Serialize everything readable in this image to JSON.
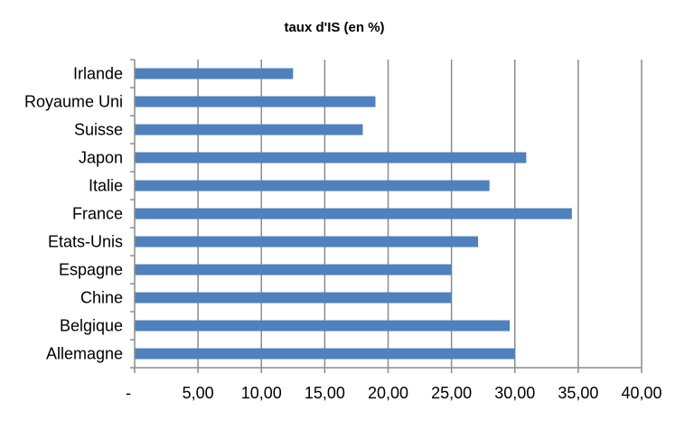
{
  "chart_data": {
    "type": "bar",
    "orientation": "horizontal",
    "title": "taux d'IS (en %)",
    "categories": [
      "Irlande",
      "Royaume Uni",
      "Suisse",
      "Japon",
      "Italie",
      "France",
      "Etats-Unis",
      "Espagne",
      "Chine",
      "Belgique",
      "Allemagne"
    ],
    "values": [
      12.5,
      19.0,
      18.0,
      30.9,
      28.0,
      34.5,
      27.1,
      25.0,
      25.0,
      29.6,
      30.0
    ],
    "xlim": [
      0,
      40
    ],
    "ticks": [
      0,
      5,
      10,
      15,
      20,
      25,
      30,
      35,
      40
    ],
    "tick_labels": [
      "-",
      "5,00",
      "10,00",
      "15,00",
      "20,00",
      "25,00",
      "30,00",
      "35,00",
      "40,00"
    ],
    "grid": "vertical",
    "legend": "none",
    "bar_color": "#4f81bd",
    "grid_color": "#8c8c8c"
  }
}
